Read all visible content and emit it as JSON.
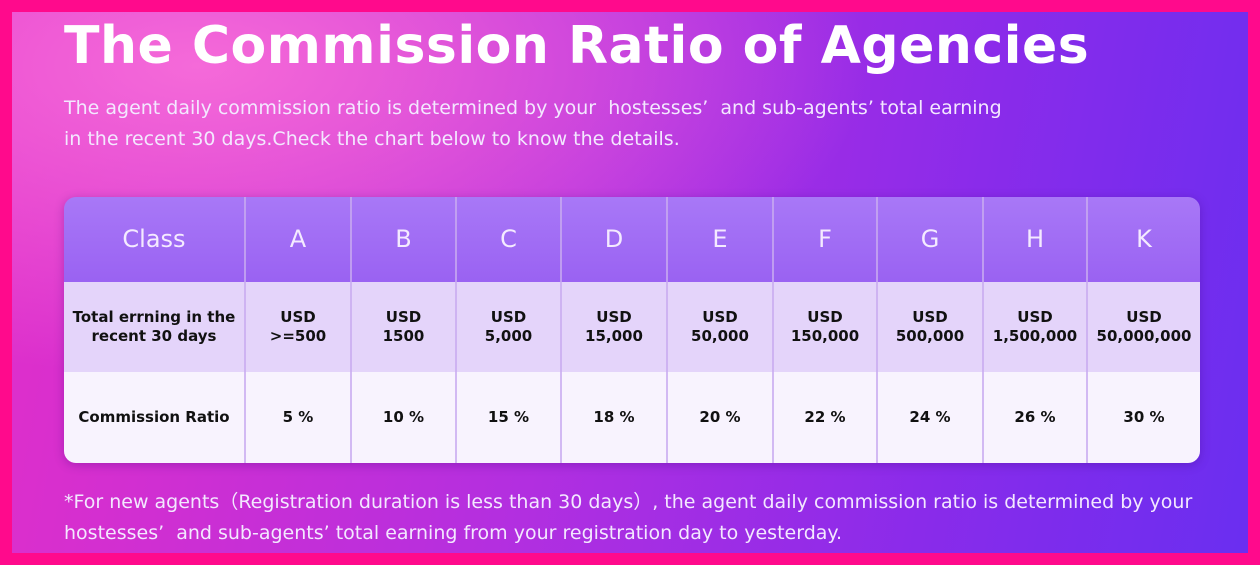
{
  "header": {
    "title": "The Commission Ratio of Agencies",
    "description": [
      "The agent daily commission ratio is determined by your  hostesses’  and sub-agents’ total earning",
      "in the recent 30 days.Check the chart below to know the details."
    ]
  },
  "table": {
    "columns": [
      "Class",
      "A",
      "B",
      "C",
      "D",
      "E",
      "F",
      "G",
      "H",
      "K"
    ],
    "rows": [
      [
        [
          "Total errning in the",
          "recent 30 days"
        ],
        [
          "USD",
          ">=500"
        ],
        [
          "USD",
          "1500"
        ],
        [
          "USD",
          "5,000"
        ],
        [
          "USD",
          "15,000"
        ],
        [
          "USD",
          "50,000"
        ],
        [
          "USD",
          "150,000"
        ],
        [
          "USD",
          "500,000"
        ],
        [
          "USD",
          "1,500,000"
        ],
        [
          "USD",
          "50,000,000"
        ]
      ],
      [
        [
          "Commission Ratio"
        ],
        [
          "5 %"
        ],
        [
          "10 %"
        ],
        [
          "15 %"
        ],
        [
          "18 %"
        ],
        [
          "20 %"
        ],
        [
          "22 %"
        ],
        [
          "24 %"
        ],
        [
          "26 %"
        ],
        [
          "30 %"
        ]
      ]
    ]
  },
  "footnote": [
    "*For new agents（Registration duration is less than 30 days）, the agent daily commission ratio is determined by your",
    "hostesses’  and sub-agents’ total earning from your registration day to yesterday."
  ]
}
